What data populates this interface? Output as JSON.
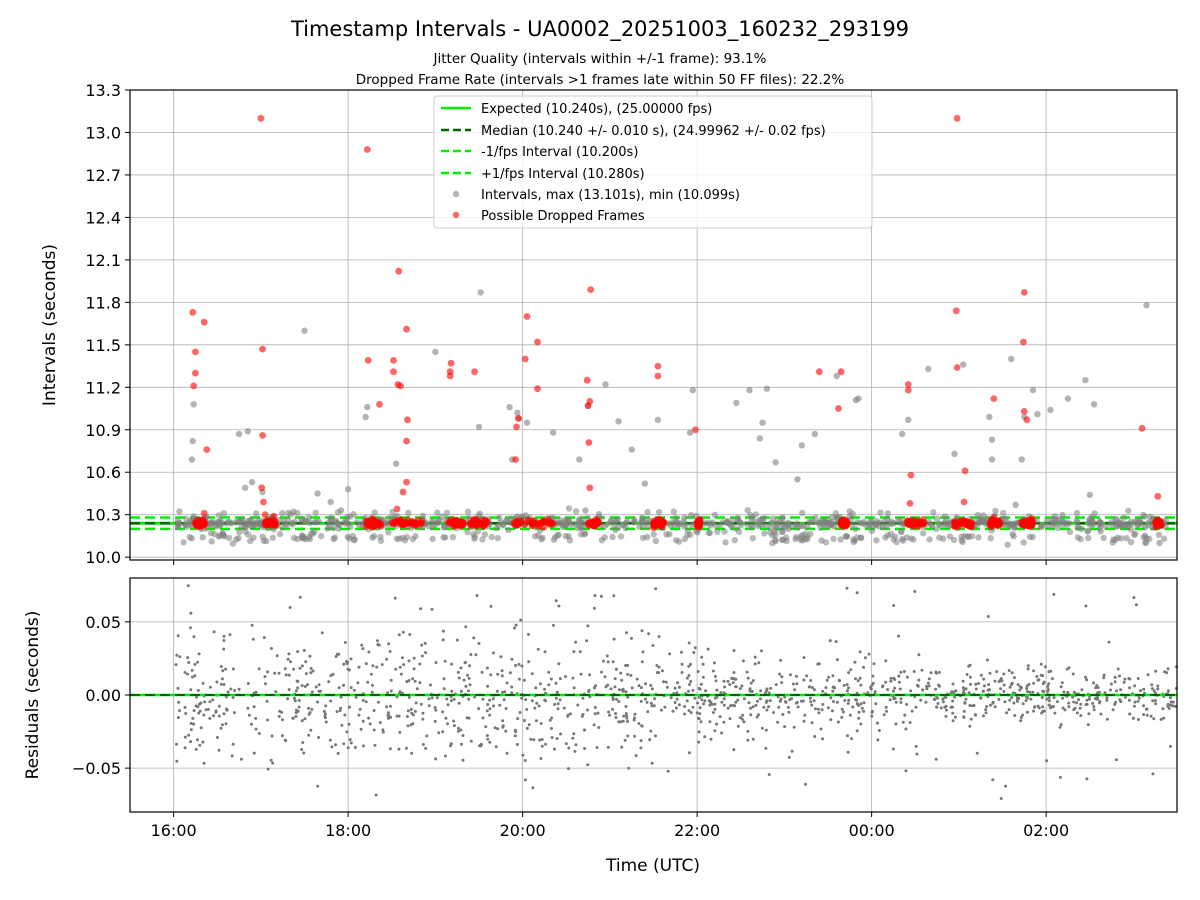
{
  "chart_data": [
    {
      "type": "scatter",
      "title": "Timestamp Intervals - UA0002_20251003_160232_293199",
      "subtitle_lines": [
        "Jitter Quality (intervals within +/-1 frame): 93.1%",
        "Dropped Frame Rate (intervals >1 frames late within 50 FF files): 22.2%"
      ],
      "ylabel": "Intervals (seconds)",
      "ylim": [
        9.98,
        13.3
      ],
      "yticks": [
        10.0,
        10.3,
        10.6,
        10.9,
        11.2,
        11.5,
        11.8,
        12.1,
        12.4,
        12.7,
        13.0,
        13.3
      ],
      "ytick_labels": [
        "10.0",
        "10.3",
        "10.6",
        "10.9",
        "11.2",
        "11.5",
        "11.8",
        "12.1",
        "12.4",
        "12.7",
        "13.0",
        "13.3"
      ],
      "xlim_hours": [
        15.5,
        27.5
      ],
      "grid": true,
      "legend_position": "top-center",
      "lines": [
        {
          "name": "Expected (10.240s), (25.00000 fps)",
          "value": 10.24,
          "style": "solid",
          "color": "#00ee00"
        },
        {
          "name": "Median (10.240 +/- 0.010 s), (24.99962 +/- 0.02 fps)",
          "value": 10.24,
          "style": "dashed",
          "color": "#006400"
        },
        {
          "name": "-1/fps Interval (10.200s)",
          "value": 10.2,
          "style": "dashed",
          "color": "#00ee00"
        },
        {
          "name": "+1/fps Interval (10.280s)",
          "value": 10.28,
          "style": "dashed",
          "color": "#00ee00"
        }
      ],
      "series": [
        {
          "name": "Intervals, max (13.101s), min (10.099s)",
          "color": "#808080",
          "points": [
            [
              16.22,
              10.82
            ],
            [
              16.21,
              10.69
            ],
            [
              16.23,
              11.08
            ],
            [
              16.75,
              10.87
            ],
            [
              16.85,
              10.89
            ],
            [
              16.82,
              10.49
            ],
            [
              16.9,
              10.53
            ],
            [
              17.02,
              10.46
            ],
            [
              17.5,
              11.6
            ],
            [
              17.65,
              10.45
            ],
            [
              17.8,
              10.39
            ],
            [
              17.92,
              10.33
            ],
            [
              18.0,
              10.48
            ],
            [
              18.2,
              10.99
            ],
            [
              18.22,
              11.06
            ],
            [
              18.55,
              10.66
            ],
            [
              19.0,
              11.45
            ],
            [
              19.52,
              11.87
            ],
            [
              19.5,
              10.92
            ],
            [
              19.85,
              11.06
            ],
            [
              19.88,
              10.69
            ],
            [
              19.94,
              11.02
            ],
            [
              19.96,
              10.98
            ],
            [
              20.05,
              10.95
            ],
            [
              20.35,
              10.88
            ],
            [
              20.65,
              10.69
            ],
            [
              20.72,
              10.33
            ],
            [
              20.75,
              11.07
            ],
            [
              20.95,
              11.22
            ],
            [
              21.1,
              10.96
            ],
            [
              21.25,
              10.76
            ],
            [
              21.4,
              10.52
            ],
            [
              21.55,
              10.97
            ],
            [
              21.95,
              11.18
            ],
            [
              21.92,
              10.88
            ],
            [
              22.45,
              11.09
            ],
            [
              22.6,
              11.18
            ],
            [
              22.75,
              10.95
            ],
            [
              22.72,
              10.84
            ],
            [
              22.8,
              11.19
            ],
            [
              22.9,
              10.67
            ],
            [
              23.2,
              10.79
            ],
            [
              23.15,
              10.55
            ],
            [
              23.35,
              10.87
            ],
            [
              23.6,
              11.28
            ],
            [
              23.85,
              11.12
            ],
            [
              23.82,
              11.11
            ],
            [
              24.35,
              10.87
            ],
            [
              24.42,
              10.97
            ],
            [
              24.65,
              11.33
            ],
            [
              24.95,
              10.73
            ],
            [
              25.05,
              11.36
            ],
            [
              25.35,
              10.99
            ],
            [
              25.38,
              10.69
            ],
            [
              25.38,
              10.83
            ],
            [
              25.6,
              11.4
            ],
            [
              25.65,
              10.37
            ],
            [
              25.72,
              10.69
            ],
            [
              25.75,
              10.99
            ],
            [
              25.85,
              11.18
            ],
            [
              25.9,
              11.01
            ],
            [
              26.05,
              11.04
            ],
            [
              26.25,
              11.12
            ],
            [
              26.45,
              11.25
            ],
            [
              26.5,
              10.44
            ],
            [
              26.55,
              11.08
            ],
            [
              27.15,
              11.78
            ],
            [
              27.12,
              10.14
            ],
            [
              27.3,
              10.1
            ]
          ]
        },
        {
          "name": "Possible Dropped Frames",
          "color": "#ff0000",
          "points": [
            [
              16.22,
              11.73
            ],
            [
              16.25,
              11.45
            ],
            [
              16.25,
              11.3
            ],
            [
              16.23,
              11.21
            ],
            [
              16.35,
              11.66
            ],
            [
              16.38,
              10.76
            ],
            [
              16.35,
              10.31
            ],
            [
              17.0,
              13.1
            ],
            [
              17.02,
              11.47
            ],
            [
              17.02,
              10.86
            ],
            [
              17.01,
              10.49
            ],
            [
              17.03,
              10.39
            ],
            [
              17.05,
              10.3
            ],
            [
              17.15,
              10.29
            ],
            [
              18.22,
              12.88
            ],
            [
              18.23,
              11.39
            ],
            [
              18.36,
              11.08
            ],
            [
              18.52,
              11.39
            ],
            [
              18.52,
              11.31
            ],
            [
              18.57,
              11.22
            ],
            [
              18.6,
              11.21
            ],
            [
              18.58,
              12.02
            ],
            [
              18.67,
              11.61
            ],
            [
              18.68,
              10.97
            ],
            [
              18.67,
              10.82
            ],
            [
              18.67,
              10.53
            ],
            [
              18.63,
              10.46
            ],
            [
              18.56,
              10.34
            ],
            [
              19.18,
              11.37
            ],
            [
              19.17,
              11.31
            ],
            [
              19.17,
              11.28
            ],
            [
              19.45,
              11.31
            ],
            [
              19.95,
              10.98
            ],
            [
              19.93,
              10.92
            ],
            [
              19.92,
              10.69
            ],
            [
              20.05,
              11.7
            ],
            [
              20.03,
              11.4
            ],
            [
              20.17,
              11.52
            ],
            [
              20.17,
              11.19
            ],
            [
              20.78,
              11.89
            ],
            [
              20.74,
              11.25
            ],
            [
              20.77,
              11.1
            ],
            [
              20.75,
              11.07
            ],
            [
              20.76,
              10.81
            ],
            [
              20.77,
              10.49
            ],
            [
              21.55,
              11.35
            ],
            [
              21.55,
              11.28
            ],
            [
              21.98,
              10.9
            ],
            [
              23.4,
              11.31
            ],
            [
              23.65,
              11.31
            ],
            [
              23.62,
              11.05
            ],
            [
              24.42,
              11.22
            ],
            [
              24.42,
              11.18
            ],
            [
              24.45,
              10.58
            ],
            [
              24.44,
              10.38
            ],
            [
              24.98,
              13.1
            ],
            [
              24.97,
              11.74
            ],
            [
              24.98,
              11.34
            ],
            [
              25.07,
              10.61
            ],
            [
              25.06,
              10.39
            ],
            [
              25.4,
              11.12
            ],
            [
              25.4,
              10.28
            ],
            [
              25.75,
              11.87
            ],
            [
              25.74,
              11.52
            ],
            [
              25.75,
              11.03
            ],
            [
              25.78,
              10.97
            ],
            [
              27.1,
              10.91
            ],
            [
              27.28,
              10.43
            ]
          ]
        }
      ]
    },
    {
      "type": "scatter",
      "ylabel": "Residuals (seconds)",
      "xlabel": "Time (UTC)",
      "ylim": [
        -0.08,
        0.08
      ],
      "yticks": [
        -0.05,
        0.0,
        0.05
      ],
      "ytick_labels": [
        "−0.05",
        "0.00",
        "0.05"
      ],
      "xticks_hours": [
        16,
        18,
        20,
        22,
        24,
        26
      ],
      "xtick_labels": [
        "16:00",
        "18:00",
        "20:00",
        "22:00",
        "00:00",
        "02:00"
      ],
      "xlim_hours": [
        15.5,
        27.5
      ],
      "series": [
        {
          "name": "Residuals",
          "color": "#777777",
          "x_range_hours": [
            16.02,
            27.5
          ],
          "count": 1400,
          "amplitude_note": "scatter mostly within +/-0.03 s, occasional outliers to +/-0.075 s"
        }
      ]
    }
  ]
}
